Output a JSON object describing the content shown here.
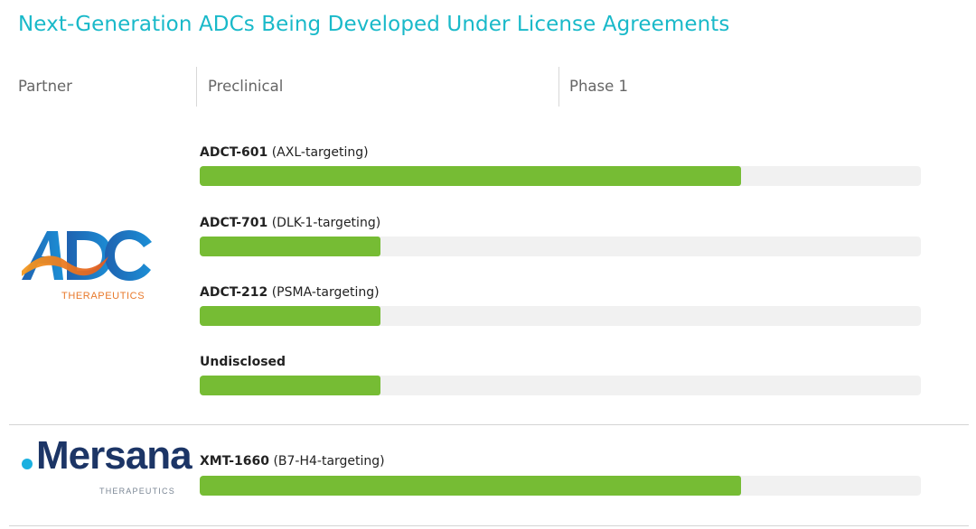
{
  "title": "Next-Generation ADCs Being Developed Under License Agreements",
  "headers": {
    "partner": "Partner",
    "preclinical": "Preclinical",
    "phase1": "Phase 1"
  },
  "colors": {
    "title": "#19b9c9",
    "bar_fill": "#76bc34",
    "bar_track": "#f1f1f1"
  },
  "partners": {
    "adc": {
      "logo_name": "adc-therapeutics-logo",
      "logo_subtext": "THERAPEUTICS"
    },
    "mersana": {
      "logo_name": "mersana-therapeutics-logo",
      "logo_wordmark": "Mersana",
      "logo_subtext": "THERAPEUTICS"
    }
  },
  "chart_data": {
    "type": "bar",
    "orientation": "horizontal",
    "title": "Next-Generation ADCs Being Developed Under License Agreements",
    "xlabel": "",
    "ylabel": "",
    "stage_scale": [
      "Preclinical",
      "Phase 1"
    ],
    "xlim": [
      0,
      2
    ],
    "programs": [
      {
        "partner": "ADC Therapeutics",
        "code": "ADCT-601",
        "target": "(AXL-targeting)",
        "progress": 1.5
      },
      {
        "partner": "ADC Therapeutics",
        "code": "ADCT-701",
        "target": "(DLK-1-targeting)",
        "progress": 0.5
      },
      {
        "partner": "ADC Therapeutics",
        "code": "ADCT-212",
        "target": "(PSMA-targeting)",
        "progress": 0.5
      },
      {
        "partner": "ADC Therapeutics",
        "code": "Undisclosed",
        "target": "",
        "progress": 0.5
      },
      {
        "partner": "Mersana Therapeutics",
        "code": "XMT-1660",
        "target": "(B7-H4-targeting)",
        "progress": 1.5
      }
    ]
  }
}
